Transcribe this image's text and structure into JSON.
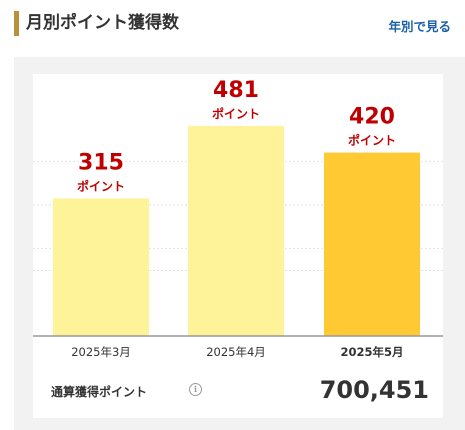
{
  "header": {
    "title": "月別ポイント獲得数",
    "yearly_link": "年別で見る"
  },
  "colors": {
    "accent_bar": "#b8913a",
    "bar_past": "#fff39a",
    "bar_current": "#ffc933",
    "value_text": "#c00000",
    "link": "#1a5fa8"
  },
  "chart_data": {
    "type": "bar",
    "categories": [
      "2025年3月",
      "2025年4月",
      "2025年5月"
    ],
    "values": [
      315,
      481,
      420
    ],
    "unit": "ポイント",
    "highlight_index": 2,
    "ylim": [
      0,
      600
    ],
    "grid": true,
    "title": "",
    "xlabel": "",
    "ylabel": ""
  },
  "total": {
    "label": "通算獲得ポイント",
    "value": "700,451",
    "info_icon": "info-icon"
  }
}
